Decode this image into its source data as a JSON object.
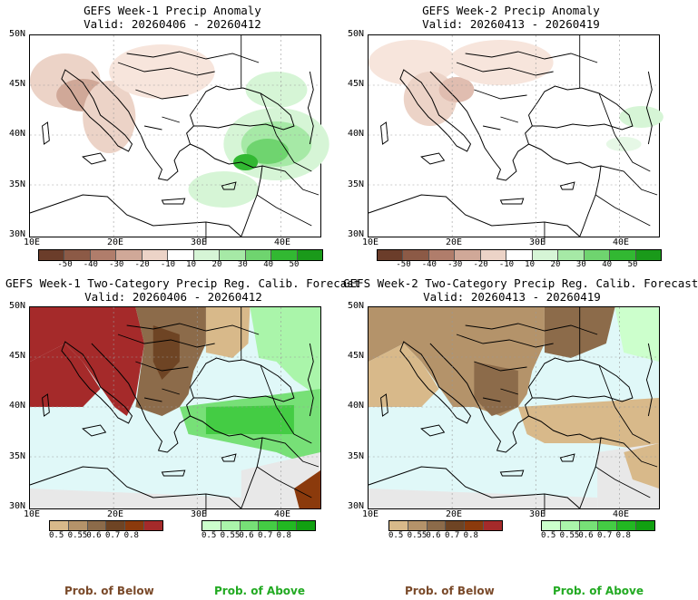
{
  "panels": [
    {
      "title": "GEFS Week-1 Precip Anomaly",
      "valid": "Valid: 20260406 - 20260412"
    },
    {
      "title": "GEFS Week-2 Precip Anomaly",
      "valid": "Valid: 20260413 - 20260419"
    },
    {
      "title": "GEFS Week-1 Two-Category Precip Reg. Calib. Forecast",
      "valid": "Valid: 20260406 - 20260412"
    },
    {
      "title": "GEFS Week-2 Two-Category Precip Reg. Calib. Forecast",
      "valid": "Valid: 20260413 - 20260419"
    }
  ],
  "axes": {
    "lat_labels": [
      "50N",
      "45N",
      "40N",
      "35N",
      "30N"
    ],
    "lon_labels": [
      "10E",
      "20E",
      "30E",
      "40E"
    ]
  },
  "anomaly_colorbar": {
    "ticks": [
      "-50",
      "-40",
      "-30",
      "-20",
      "-10",
      "10",
      "20",
      "30",
      "40",
      "50"
    ],
    "colors": [
      "#6b3d2a",
      "#8c5a46",
      "#b07d6b",
      "#d0a898",
      "#ecd3c7",
      "#ffffff",
      "#d6f5d6",
      "#a6e9a6",
      "#6fd46f",
      "#32b832",
      "#1a9a1a"
    ]
  },
  "prob_colorbar": {
    "below_ticks": [
      "0.5",
      "0.55",
      "0.6",
      "0.7",
      "0.8"
    ],
    "above_ticks": [
      "0.5",
      "0.55",
      "0.6",
      "0.7",
      "0.8"
    ],
    "below_colors": [
      "#d8b98a",
      "#b4936a",
      "#8c6b4a",
      "#6e4424",
      "#8b3a0c",
      "#a52a2a"
    ],
    "above_colors": [
      "#ccffcc",
      "#aaf5aa",
      "#77e077",
      "#44cc44",
      "#22b822",
      "#11a011"
    ],
    "below_title": "Prob. of Below",
    "above_title": "Prob. of Above"
  }
}
